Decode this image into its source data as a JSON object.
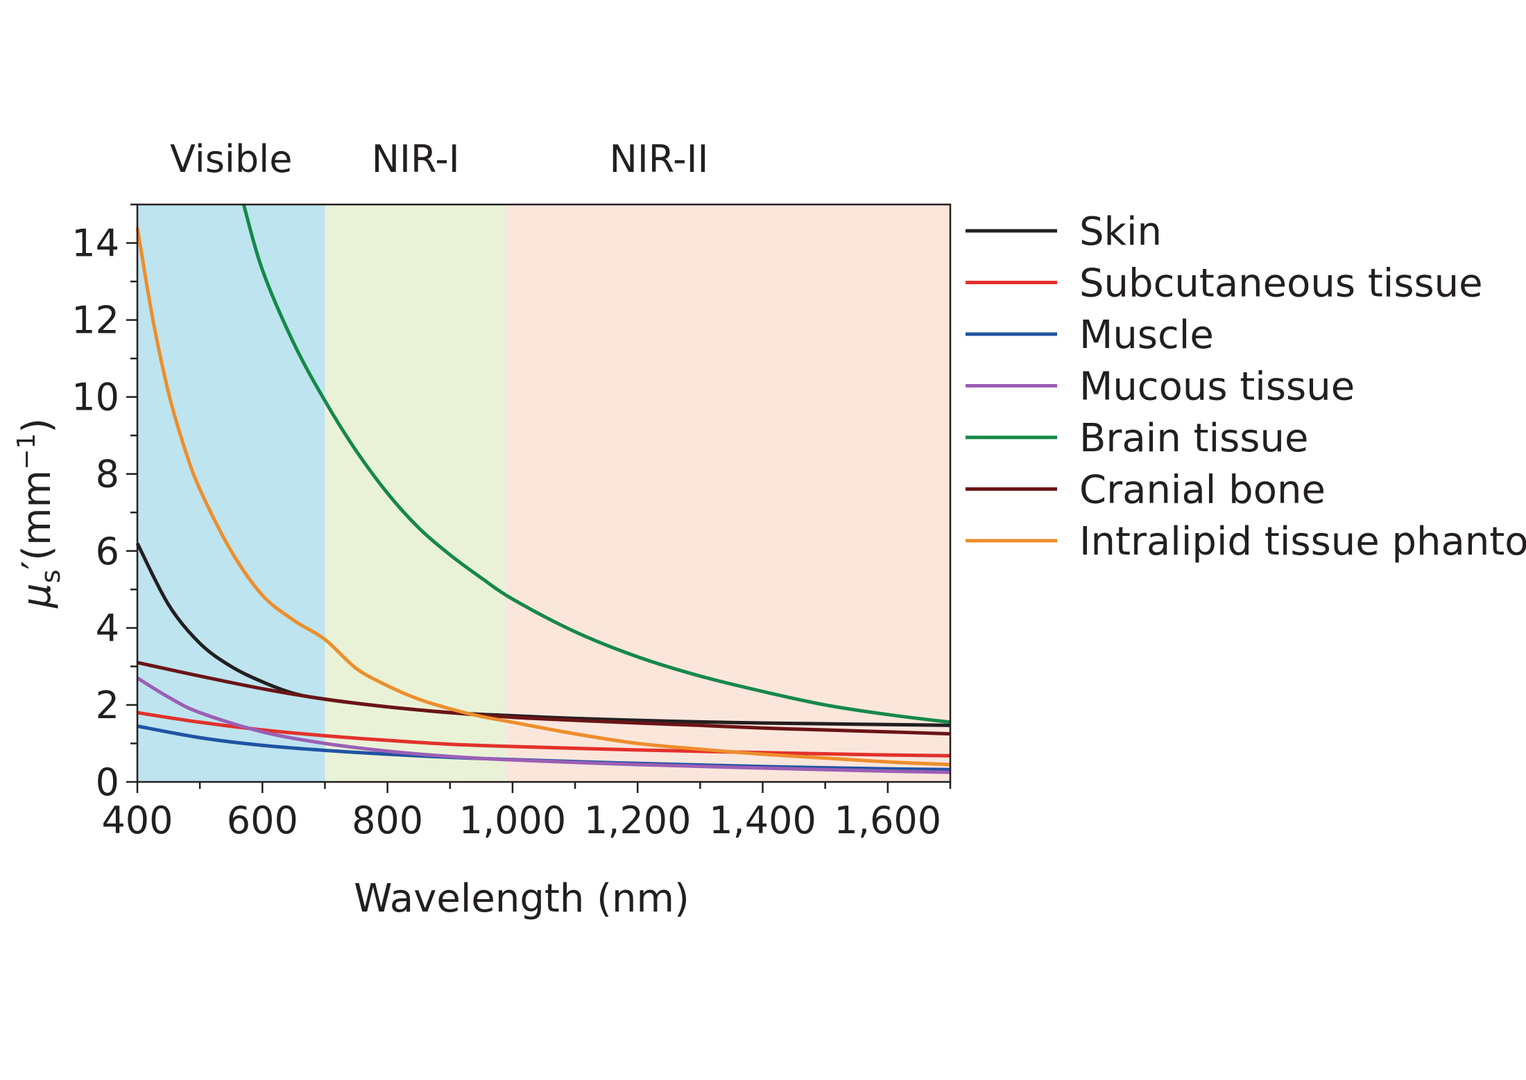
{
  "chart_data": {
    "type": "line",
    "title": "",
    "xlabel": "Wavelength (nm)",
    "ylabel": {
      "symbol": "μ",
      "subscript": "s",
      "prime": "′",
      "unit_open": "(mm",
      "unit_exp": "−1",
      "unit_close": ")"
    },
    "xlim": [
      400,
      1700
    ],
    "ylim": [
      0,
      15
    ],
    "x_ticks": [
      {
        "value": 400,
        "label": "400"
      },
      {
        "value": 600,
        "label": "600"
      },
      {
        "value": 800,
        "label": "800"
      },
      {
        "value": 1000,
        "label": "1,000"
      },
      {
        "value": 1200,
        "label": "1,200"
      },
      {
        "value": 1400,
        "label": "1,400"
      },
      {
        "value": 1600,
        "label": "1,600"
      }
    ],
    "y_ticks": [
      {
        "value": 0,
        "label": "0"
      },
      {
        "value": 2,
        "label": "2"
      },
      {
        "value": 4,
        "label": "4"
      },
      {
        "value": 6,
        "label": "6"
      },
      {
        "value": 8,
        "label": "8"
      },
      {
        "value": 10,
        "label": "10"
      },
      {
        "value": 12,
        "label": "12"
      },
      {
        "value": 14,
        "label": "14"
      }
    ],
    "bands": [
      {
        "label": "Visible",
        "from": 400,
        "to": 700,
        "color": "#bde4ef"
      },
      {
        "label": "NIR-I",
        "from": 700,
        "to": 990,
        "color": "#e9f2d7"
      },
      {
        "label": "NIR-II",
        "from": 990,
        "to": 1700,
        "color": "#fbe6dc"
      }
    ],
    "legend_position": "right",
    "series": [
      {
        "name": "Skin",
        "color": "#231f20",
        "x": [
          400,
          450,
          500,
          550,
          600,
          650,
          700,
          800,
          900,
          1000,
          1100,
          1200,
          1300,
          1400,
          1500,
          1600,
          1700
        ],
        "values": [
          6.2,
          4.6,
          3.6,
          3.0,
          2.6,
          2.3,
          2.15,
          1.95,
          1.8,
          1.72,
          1.65,
          1.6,
          1.56,
          1.53,
          1.51,
          1.49,
          1.47
        ]
      },
      {
        "name": "Subcutaneous tissue",
        "color": "#e2312b",
        "x": [
          400,
          500,
          600,
          700,
          800,
          900,
          1000,
          1200,
          1400,
          1600,
          1700
        ],
        "values": [
          1.8,
          1.55,
          1.35,
          1.2,
          1.08,
          0.98,
          0.92,
          0.83,
          0.76,
          0.7,
          0.68
        ]
      },
      {
        "name": "Muscle",
        "color": "#1f53a3",
        "x": [
          400,
          500,
          600,
          700,
          800,
          900,
          1000,
          1200,
          1400,
          1600,
          1700
        ],
        "values": [
          1.45,
          1.15,
          0.95,
          0.82,
          0.72,
          0.64,
          0.58,
          0.48,
          0.4,
          0.34,
          0.32
        ]
      },
      {
        "name": "Mucous tissue",
        "color": "#9b5fb5",
        "x": [
          400,
          450,
          500,
          600,
          700,
          800,
          900,
          1000,
          1200,
          1400,
          1600,
          1700
        ],
        "values": [
          2.7,
          2.2,
          1.8,
          1.3,
          1.0,
          0.8,
          0.66,
          0.57,
          0.45,
          0.36,
          0.28,
          0.25
        ]
      },
      {
        "name": "Brain tissue",
        "color": "#16884a",
        "x": [
          570,
          600,
          650,
          700,
          750,
          800,
          850,
          900,
          950,
          1000,
          1100,
          1200,
          1300,
          1400,
          1500,
          1600,
          1700
        ],
        "values": [
          15.0,
          13.3,
          11.4,
          9.9,
          8.6,
          7.5,
          6.6,
          5.9,
          5.3,
          4.75,
          3.9,
          3.25,
          2.75,
          2.35,
          2.0,
          1.75,
          1.55
        ]
      },
      {
        "name": "Cranial bone",
        "color": "#6b1416",
        "x": [
          400,
          500,
          600,
          700,
          800,
          900,
          1000,
          1100,
          1200,
          1300,
          1400,
          1500,
          1600,
          1700
        ],
        "values": [
          3.1,
          2.75,
          2.42,
          2.15,
          1.95,
          1.8,
          1.68,
          1.6,
          1.53,
          1.47,
          1.4,
          1.35,
          1.3,
          1.25
        ]
      },
      {
        "name": "Intralipid tissue phantom",
        "color": "#ed8e2c",
        "x": [
          400,
          425,
          450,
          475,
          500,
          550,
          600,
          650,
          700,
          750,
          800,
          850,
          900,
          950,
          1000,
          1100,
          1200,
          1300,
          1400,
          1500,
          1600,
          1700
        ],
        "values": [
          14.4,
          12.0,
          10.1,
          8.7,
          7.6,
          6.0,
          4.85,
          4.2,
          3.7,
          2.95,
          2.5,
          2.15,
          1.9,
          1.7,
          1.55,
          1.25,
          1.0,
          0.85,
          0.72,
          0.62,
          0.52,
          0.45
        ]
      }
    ]
  }
}
